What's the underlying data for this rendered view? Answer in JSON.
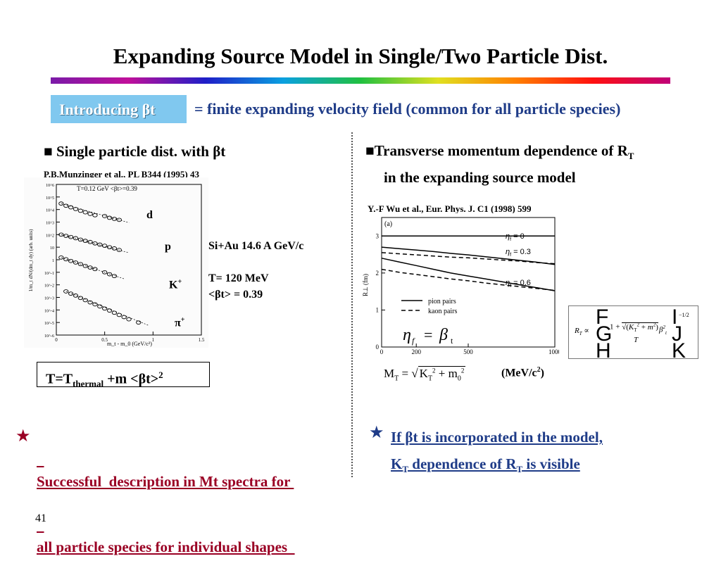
{
  "slide": {
    "title": "Expanding Source Model in Single/Two Particle Dist.",
    "intro_label": "Introducing βt",
    "intro_text": "= finite expanding velocity field (common for all particle species)",
    "page_number": "41"
  },
  "left": {
    "bullet": "■",
    "heading": "Single particle dist. with βt",
    "citation": "P.B.Munzinger et al., PL B344 (1995) 43",
    "plot_header": "T=0.12 GeV  <βt>=0.39",
    "ylabel": "1/m_t dN/(dm_t dy) (arb. units)",
    "xlabel": "m_t - m_0  (GeV/c²)",
    "species": {
      "d": "d",
      "p": "p",
      "K_base": "K",
      "K_sup": "+",
      "pi_base": "π",
      "pi_sup": "+"
    },
    "reaction": "Si+Au 14.6 A GeV/c",
    "temp": "T= 120 MeV",
    "beta": "<βt> = 0.39",
    "formula_base": "T=T",
    "formula_sub": "thermal",
    "formula_rest": " +m <βt>",
    "formula_sup": "2",
    "conclusion_line1": "Successful  description in Mt spectra for ",
    "conclusion_line2": "all particle species for individual shapes  "
  },
  "right": {
    "heading_line1_a": "Transverse momentum dependence of R",
    "heading_line1_sub": "T",
    "heading_line2": "in the expanding source model",
    "citation": "Y.-F Wu et al., Eur. Phys. J. C1 (1998) 599",
    "panel_label": "(a)",
    "ylabel": "R⊥ (fm)",
    "legend_pion": "pion pairs",
    "legend_kaon": "kaon pairs",
    "curve_labels": [
      "η_f = 0",
      "η_f = 0.3",
      "η_f = 0.6"
    ],
    "eta_formula": "η_f = β_t",
    "mt_formula": "M_T = √(K_T² + m_0²)",
    "unit": "(MeV/c²)",
    "rt_formula": "R_T ∝ (1 + (√(K_T² + m²)/T) β_t²)^(-1/2)",
    "conclusion_line1": "If  βt  is incorporated in the model,",
    "conclusion_line2_a": "K",
    "conclusion_line2_b": "T",
    "conclusion_line2_c": " dependence of R",
    "conclusion_line2_d": "T",
    "conclusion_line2_e": " is visible"
  },
  "chart_data": [
    {
      "type": "scatter",
      "title": "T=0.12 GeV  <βt>=0.39",
      "xlabel": "m_t - m_0 (GeV/c²)",
      "ylabel": "1/m_t dN/(dm_t dy) (arb. units)",
      "xlim": [
        0,
        1.5
      ],
      "y_log": true,
      "ylim": [
        1e-06,
        1000000.0
      ],
      "x_ticks": [
        "0",
        "0.5",
        "1",
        "1.5"
      ],
      "y_ticks": [
        "10^6",
        "10^5",
        "10^4",
        "10^3",
        "10^2",
        "10",
        "1",
        "10^-1",
        "10^-2",
        "10^-3",
        "10^-4",
        "10^-5",
        "10^-6"
      ],
      "series": [
        {
          "name": "d",
          "points": [
            [
              0.05,
              30000.0
            ],
            [
              0.1,
              20000.0
            ],
            [
              0.15,
              15000.0
            ],
            [
              0.2,
              11000.0
            ],
            [
              0.25,
              8000.0
            ],
            [
              0.3,
              6000.0
            ],
            [
              0.35,
              4500.0
            ],
            [
              0.4,
              3500.0
            ],
            [
              0.5,
              3000.0
            ],
            [
              0.55,
              2200.0
            ],
            [
              0.6,
              1800.0
            ],
            [
              0.65,
              1500.0
            ]
          ]
        },
        {
          "name": "p",
          "points": [
            [
              0.05,
              100
            ],
            [
              0.1,
              80
            ],
            [
              0.15,
              65
            ],
            [
              0.2,
              52
            ],
            [
              0.25,
              40
            ],
            [
              0.3,
              32
            ],
            [
              0.35,
              26
            ],
            [
              0.4,
              20
            ],
            [
              0.45,
              16
            ],
            [
              0.5,
              13
            ],
            [
              0.55,
              10
            ],
            [
              0.6,
              8
            ],
            [
              0.65,
              6
            ]
          ]
        },
        {
          "name": "K+",
          "points": [
            [
              0.05,
              1.5
            ],
            [
              0.1,
              1.1
            ],
            [
              0.15,
              0.8
            ],
            [
              0.2,
              0.6
            ],
            [
              0.25,
              0.45
            ],
            [
              0.3,
              0.32
            ],
            [
              0.35,
              0.24
            ],
            [
              0.4,
              0.18
            ],
            [
              0.5,
              0.1
            ],
            [
              0.55,
              0.07
            ],
            [
              0.6,
              0.05
            ]
          ]
        },
        {
          "name": "π+",
          "points": [
            [
              0.1,
              0.003
            ],
            [
              0.15,
              0.002
            ],
            [
              0.2,
              0.0014
            ],
            [
              0.25,
              0.0009
            ],
            [
              0.3,
              0.0006
            ],
            [
              0.35,
              0.0004
            ],
            [
              0.4,
              0.00028
            ],
            [
              0.45,
              0.00019
            ],
            [
              0.5,
              0.00013
            ],
            [
              0.55,
              9e-05
            ],
            [
              0.6,
              6e-05
            ],
            [
              0.65,
              4e-05
            ],
            [
              0.7,
              2.7e-05
            ],
            [
              0.75,
              1.8e-05
            ],
            [
              0.85,
              1e-05
            ]
          ]
        }
      ]
    },
    {
      "type": "line",
      "xlabel": "",
      "ylabel": "R⊥ (fm)",
      "xlim": [
        0,
        1000
      ],
      "ylim": [
        0,
        3.5
      ],
      "x_ticks": [
        "0",
        "200",
        "500",
        "1000"
      ],
      "y_ticks": [
        "0",
        "1",
        "2",
        "3"
      ],
      "series": [
        {
          "name": "η_f = 0 (pion pairs)",
          "style": "solid",
          "x": [
            0,
            100,
            200,
            300,
            400,
            500,
            600,
            700,
            800,
            900,
            1000
          ],
          "y": [
            3.0,
            3.0,
            3.0,
            3.0,
            3.0,
            3.0,
            3.0,
            3.0,
            3.0,
            3.0,
            3.0
          ]
        },
        {
          "name": "η_f = 0 (kaon pairs)",
          "style": "dashed",
          "x": [
            0,
            100,
            200,
            300,
            400,
            500,
            600,
            700,
            800,
            900,
            1000
          ],
          "y": [
            3.0,
            3.0,
            3.0,
            3.0,
            3.0,
            3.0,
            3.0,
            3.0,
            3.0,
            3.0,
            3.0
          ]
        },
        {
          "name": "η_f = 0.3 (pion pairs)",
          "style": "solid",
          "x": [
            0,
            100,
            200,
            300,
            400,
            500,
            600,
            700,
            800,
            900,
            1000
          ],
          "y": [
            2.7,
            2.66,
            2.62,
            2.58,
            2.53,
            2.49,
            2.44,
            2.39,
            2.34,
            2.29,
            2.23
          ]
        },
        {
          "name": "η_f = 0.3 (kaon pairs)",
          "style": "dashed",
          "x": [
            0,
            100,
            200,
            300,
            400,
            500,
            600,
            700,
            800,
            900,
            1000
          ],
          "y": [
            2.55,
            2.52,
            2.49,
            2.46,
            2.43,
            2.41,
            2.38,
            2.35,
            2.32,
            2.28,
            2.25
          ]
        },
        {
          "name": "η_f = 0.6 (pion pairs)",
          "style": "solid",
          "x": [
            0,
            100,
            200,
            300,
            400,
            500,
            600,
            700,
            800,
            900,
            1000
          ],
          "y": [
            2.4,
            2.3,
            2.2,
            2.1,
            2.0,
            1.92,
            1.84,
            1.76,
            1.68,
            1.6,
            1.52
          ]
        },
        {
          "name": "η_f = 0.6 (kaon pairs)",
          "style": "dashed",
          "x": [
            0,
            100,
            200,
            300,
            400,
            500,
            600,
            700,
            800,
            900,
            1000
          ],
          "y": [
            2.1,
            2.02,
            1.96,
            1.9,
            1.84,
            1.79,
            1.73,
            1.68,
            1.63,
            1.58,
            1.53
          ]
        }
      ]
    }
  ],
  "colors": {
    "title_bar_gradient": [
      "#7a1aa8",
      "#c0109a",
      "#1e1ec8",
      "#0aa0e0",
      "#20c040",
      "#e0e020",
      "#ff8000",
      "#ff1010",
      "#c00078"
    ],
    "intro_box": "#80c8ef",
    "navy_text": "#1f3c88",
    "red_text": "#9a0024"
  },
  "icons": {
    "bullet": "black-square-icon",
    "star": "star-icon"
  }
}
